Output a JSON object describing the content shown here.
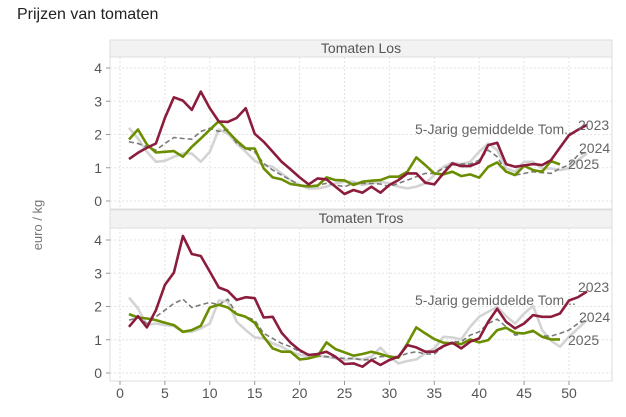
{
  "chart_data": {
    "type": "line",
    "title": "Prijzen van tomaten",
    "ylabel": "euro / kg",
    "xlim": [
      0,
      54
    ],
    "ylim": [
      0,
      4.3
    ],
    "x_ticks": [
      0,
      5,
      10,
      15,
      20,
      25,
      30,
      35,
      40,
      45,
      50
    ],
    "y_ticks": [
      0,
      1,
      2,
      3,
      4
    ],
    "grid": true,
    "x_start": 1,
    "colors": {
      "2023": "#8c1c3c",
      "2024": "#d4d4d4",
      "2025": "#6b8e00",
      "avg": "#7a7a7a"
    },
    "facets": [
      {
        "name": "Tomaten Los",
        "series": [
          {
            "name": "2024",
            "key": "2024",
            "values": [
              2.2,
              1.88,
              1.48,
              1.18,
              1.21,
              1.33,
              1.43,
              1.43,
              1.18,
              1.48,
              2.15,
              2.03,
              1.73,
              1.48,
              1.21,
              1.08,
              1.03,
              0.83,
              0.63,
              0.48,
              0.38,
              0.38,
              0.43,
              0.53,
              0.58,
              0.58,
              0.48,
              0.53,
              0.58,
              0.53,
              0.43,
              0.38,
              0.43,
              0.53,
              0.78,
              1.03,
              1.15,
              1.11,
              1.18,
              1.48,
              1.73,
              1.53,
              0.98,
              0.88,
              1.18,
              1.18,
              0.98,
              0.98,
              0.93,
              0.98,
              1.23,
              1.43
            ]
          },
          {
            "name": "5-Jarig gemiddelde Tom...",
            "key": "avg",
            "values": [
              1.78,
              1.73,
              1.63,
              1.53,
              1.73,
              1.91,
              1.88,
              1.86,
              2.09,
              2.19,
              2.09,
              2.15,
              1.73,
              1.58,
              1.48,
              1.13,
              0.93,
              0.78,
              0.63,
              0.48,
              0.45,
              0.48,
              0.53,
              0.48,
              0.43,
              0.53,
              0.53,
              0.53,
              0.51,
              0.43,
              0.53,
              0.63,
              0.73,
              0.83,
              0.83,
              0.98,
              1.08,
              1.11,
              1.11,
              1.23,
              1.53,
              1.33,
              0.88,
              0.78,
              0.83,
              0.88,
              0.85,
              0.83,
              0.98,
              1.08,
              1.38,
              1.48
            ]
          },
          {
            "name": "2025",
            "key": "2025",
            "values": [
              1.85,
              2.15,
              1.7,
              1.46,
              1.48,
              1.5,
              1.33,
              1.63,
              1.88,
              2.14,
              2.4,
              2.09,
              1.81,
              1.58,
              1.58,
              0.98,
              0.71,
              0.65,
              0.51,
              0.47,
              0.44,
              0.46,
              0.71,
              0.63,
              0.62,
              0.48,
              0.58,
              0.61,
              0.63,
              0.73,
              0.73,
              0.88,
              1.31,
              1.08,
              0.83,
              0.8,
              0.88,
              0.75,
              0.8,
              0.7,
              1.03,
              1.16,
              0.88,
              0.78,
              1.06,
              0.93,
              0.88,
              1.2,
              1.1
            ]
          },
          {
            "name": "2023",
            "key": "2023",
            "values": [
              1.26,
              1.45,
              1.6,
              1.73,
              2.5,
              3.12,
              3.02,
              2.74,
              3.29,
              2.79,
              2.39,
              2.38,
              2.5,
              2.79,
              2.02,
              1.78,
              1.48,
              1.18,
              0.95,
              0.71,
              0.5,
              0.68,
              0.65,
              0.43,
              0.21,
              0.33,
              0.25,
              0.43,
              0.25,
              0.48,
              0.63,
              0.83,
              0.83,
              0.55,
              0.5,
              0.83,
              1.13,
              1.05,
              1.05,
              1.16,
              1.68,
              1.75,
              1.11,
              1.03,
              1.07,
              1.11,
              1.08,
              1.23,
              1.61,
              1.98,
              2.14,
              2.29
            ]
          }
        ]
      },
      {
        "name": "Tomaten Tros",
        "series": [
          {
            "name": "2024",
            "key": "2024",
            "values": [
              2.27,
              1.94,
              1.44,
              1.49,
              1.44,
              1.41,
              1.24,
              1.24,
              1.34,
              1.49,
              2.18,
              2.15,
              1.54,
              1.29,
              1.07,
              1.04,
              0.89,
              0.79,
              0.64,
              0.54,
              0.51,
              0.51,
              0.49,
              0.44,
              0.39,
              0.44,
              0.41,
              0.49,
              0.76,
              0.49,
              0.29,
              0.36,
              0.41,
              0.59,
              0.74,
              1.09,
              1.07,
              1.01,
              1.39,
              1.69,
              1.84,
              1.99,
              1.71,
              1.49,
              1.79,
              2.02,
              1.29,
              0.97,
              0.79,
              1.09,
              1.34,
              1.59
            ]
          },
          {
            "name": "5-Jarig gemiddelde Tom...",
            "key": "avg",
            "values": [
              1.59,
              1.67,
              1.49,
              1.69,
              1.89,
              2.09,
              2.22,
              1.97,
              2.05,
              2.12,
              2.05,
              2.22,
              1.77,
              1.69,
              1.59,
              1.19,
              1.04,
              0.89,
              0.79,
              0.64,
              0.57,
              0.51,
              0.49,
              0.46,
              0.44,
              0.44,
              0.39,
              0.41,
              0.49,
              0.51,
              0.49,
              0.59,
              0.64,
              0.57,
              0.57,
              0.79,
              0.94,
              0.94,
              1.14,
              1.24,
              1.49,
              1.62,
              1.39,
              1.14,
              1.19,
              1.24,
              1.11,
              1.11,
              1.19,
              1.29,
              1.49,
              1.59
            ]
          },
          {
            "name": "2025",
            "key": "2025",
            "values": [
              1.77,
              1.67,
              1.64,
              1.59,
              1.51,
              1.44,
              1.24,
              1.29,
              1.42,
              1.97,
              2.05,
              1.97,
              1.77,
              1.69,
              1.51,
              1.09,
              0.74,
              0.64,
              0.64,
              0.41,
              0.44,
              0.51,
              0.92,
              0.72,
              0.62,
              0.52,
              0.57,
              0.64,
              0.57,
              0.49,
              0.46,
              0.89,
              1.37,
              1.19,
              1.02,
              0.91,
              0.89,
              0.87,
              1.01,
              0.92,
              0.99,
              1.29,
              1.36,
              1.21,
              1.19,
              1.27,
              1.09,
              1.01,
              1.01
            ]
          },
          {
            "name": "2023",
            "key": "2023",
            "values": [
              1.39,
              1.71,
              1.37,
              1.89,
              2.65,
              3.02,
              4.12,
              3.58,
              3.52,
              3.05,
              2.57,
              2.47,
              2.2,
              2.28,
              2.25,
              1.67,
              1.69,
              1.21,
              0.91,
              0.69,
              0.54,
              0.57,
              0.64,
              0.49,
              0.27,
              0.29,
              0.19,
              0.39,
              0.24,
              0.39,
              0.49,
              0.84,
              0.77,
              0.64,
              0.64,
              0.81,
              0.91,
              0.74,
              0.94,
              1.04,
              1.54,
              1.93,
              1.54,
              1.34,
              1.49,
              1.74,
              1.69,
              1.69,
              1.79,
              2.18,
              2.28,
              2.45
            ]
          }
        ]
      }
    ]
  }
}
